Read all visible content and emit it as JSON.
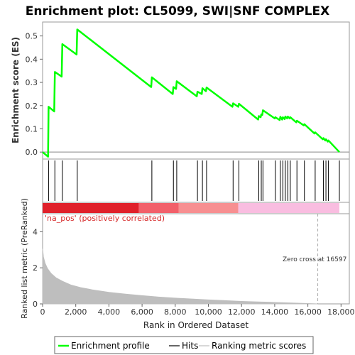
{
  "chart_data": {
    "type": "line",
    "title": "Enrichment plot: CL5099, SWI|SNF COMPLEX",
    "xlabel": "Rank in Ordered Dataset",
    "ylabel_top": "Enrichment score (ES)",
    "ylabel_bottom": "Ranked list metric (PreRanked)",
    "xlim": [
      0,
      18500
    ],
    "x_ticks": [
      0,
      2000,
      4000,
      6000,
      8000,
      10000,
      12000,
      14000,
      16000,
      18000
    ],
    "x_tick_labels": [
      "0",
      "2,000",
      "4,000",
      "6,000",
      "8,000",
      "10,000",
      "12,000",
      "14,000",
      "16,000",
      "18,000"
    ],
    "es_ylim": [
      -0.03,
      0.56
    ],
    "es_y_ticks": [
      0.0,
      0.1,
      0.2,
      0.3,
      0.4,
      0.5
    ],
    "es_y_tick_labels": [
      "0.0",
      "0.1",
      "0.2",
      "0.3",
      "0.4",
      "0.5"
    ],
    "metric_ylim": [
      0,
      5
    ],
    "metric_y_ticks": [
      0,
      2,
      4
    ],
    "metric_y_tick_labels": [
      "0",
      "2",
      "4"
    ],
    "series": [
      {
        "name": "Enrichment profile",
        "color": "#00ff00",
        "x": [
          0,
          330,
          360,
          700,
          740,
          1150,
          1190,
          2050,
          2090,
          6550,
          6590,
          7850,
          7890,
          8050,
          8090,
          9300,
          9340,
          9600,
          9640,
          9850,
          9890,
          11450,
          11490,
          11800,
          11840,
          13000,
          13040,
          13150,
          13190,
          13250,
          13290,
          14000,
          14040,
          14300,
          14340,
          14450,
          14490,
          14600,
          14640,
          14750,
          14790,
          14900,
          14940,
          15300,
          15340,
          15750,
          15790,
          16400,
          16440,
          16900,
          16940,
          17050,
          17090,
          17200,
          17240,
          17900
        ],
        "y": [
          0.0,
          -0.02,
          0.195,
          0.175,
          0.345,
          0.325,
          0.465,
          0.42,
          0.528,
          0.28,
          0.322,
          0.25,
          0.28,
          0.272,
          0.305,
          0.24,
          0.26,
          0.25,
          0.275,
          0.262,
          0.278,
          0.195,
          0.21,
          0.195,
          0.208,
          0.14,
          0.155,
          0.15,
          0.162,
          0.16,
          0.18,
          0.145,
          0.15,
          0.138,
          0.152,
          0.14,
          0.15,
          0.142,
          0.153,
          0.145,
          0.153,
          0.145,
          0.15,
          0.128,
          0.135,
          0.115,
          0.12,
          0.08,
          0.085,
          0.055,
          0.06,
          0.05,
          0.055,
          0.045,
          0.05,
          0.0
        ]
      }
    ],
    "hits": [
      360,
      740,
      1190,
      2090,
      6590,
      7890,
      8090,
      9340,
      9640,
      9890,
      11490,
      11840,
      13040,
      13190,
      13290,
      14040,
      14340,
      14490,
      14640,
      14790,
      14940,
      15340,
      15790,
      16440,
      16940,
      17090,
      17240,
      17900
    ],
    "ranking_metric": {
      "name": "Ranking metric scores",
      "color": "#bebebe",
      "x": [
        0,
        50,
        150,
        300,
        500,
        800,
        1200,
        1700,
        2300,
        3000,
        4000,
        5000,
        6000,
        7000,
        8000,
        9000,
        10000,
        11000,
        12000,
        13000,
        14000,
        15000,
        16000,
        16597
      ],
      "y": [
        3.05,
        2.6,
        2.25,
        1.95,
        1.7,
        1.45,
        1.25,
        1.05,
        0.9,
        0.78,
        0.64,
        0.54,
        0.46,
        0.38,
        0.32,
        0.27,
        0.22,
        0.18,
        0.14,
        0.11,
        0.08,
        0.05,
        0.02,
        0.0
      ]
    },
    "zero_cross": 16597,
    "zero_cross_label": "Zero cross at 16597",
    "correlation_label": "'na_pos' (positively correlated)",
    "heat_bar": [
      {
        "start": 0,
        "end": 5800,
        "color": "#e0202a"
      },
      {
        "start": 5800,
        "end": 8200,
        "color": "#f2606a"
      },
      {
        "start": 8200,
        "end": 11800,
        "color": "#f78f91"
      },
      {
        "start": 11800,
        "end": 17900,
        "color": "#f9bde0"
      }
    ],
    "legend": [
      {
        "label": "Enrichment profile",
        "color": "#00ff00"
      },
      {
        "label": "Hits",
        "color": "#000000"
      },
      {
        "label": "Ranking metric scores",
        "color": "#bebebe"
      }
    ],
    "legend_position": "bottom",
    "grid": false
  }
}
